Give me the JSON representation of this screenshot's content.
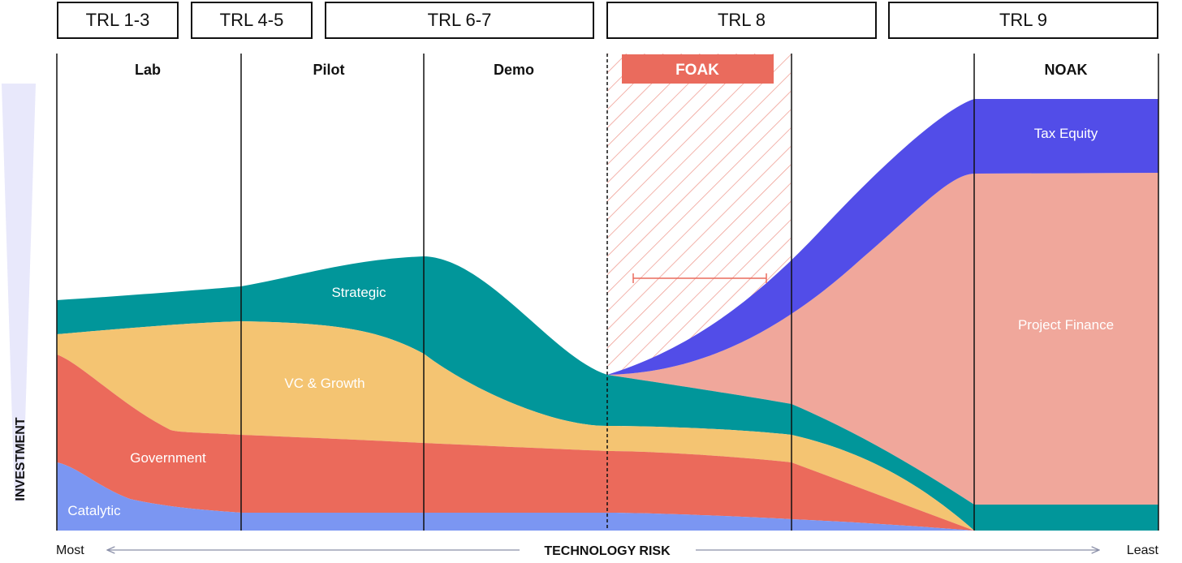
{
  "trl_labels": [
    "TRL 1-3",
    "TRL 4-5",
    "TRL 6-7",
    "TRL 8",
    "TRL 9"
  ],
  "stages": [
    "Lab",
    "Pilot",
    "Demo",
    "FOAK",
    "NOAK"
  ],
  "layers": {
    "tax_equity": "Tax Equity",
    "project_finance": "Project Finance",
    "strategic": "Strategic",
    "vc_growth": "VC & Growth",
    "government": "Government",
    "catalytic": "Catalytic"
  },
  "axis": {
    "y_label": "INVESTMENT",
    "x_label": "TECHNOLOGY RISK",
    "x_left": "Most",
    "x_right": "Least"
  },
  "colors": {
    "tax_equity": "#524de8",
    "project_finance": "#f0a79b",
    "strategic": "#01969a",
    "vc_growth": "#f4c472",
    "government": "#eb6a5b",
    "catalytic": "#7b96f2",
    "foak_band": "#ea6b5d",
    "investment_wedge": "#e8e8fb"
  }
}
